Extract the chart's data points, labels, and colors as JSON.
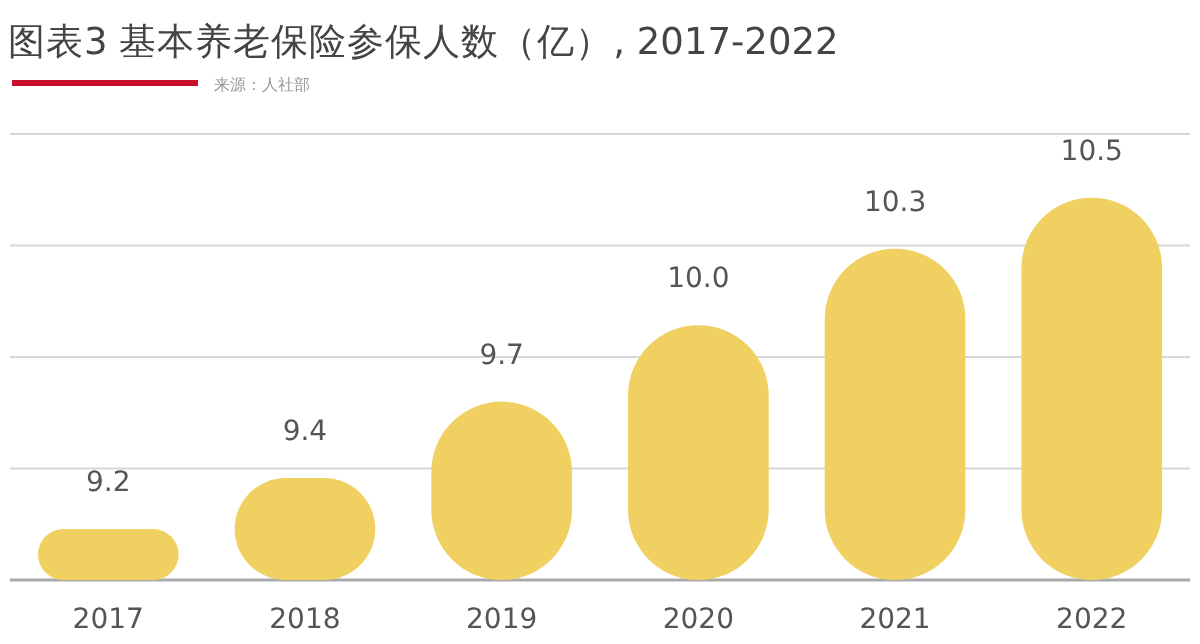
{
  "chart_data": {
    "type": "bar",
    "title": "图表3 基本养老保险参保人数（亿）, 2017-2022",
    "annotations": [
      "来源：人社部"
    ],
    "categories": [
      "2017",
      "2018",
      "2019",
      "2020",
      "2021",
      "2022"
    ],
    "values": [
      9.2,
      9.4,
      9.7,
      10.0,
      10.3,
      10.5
    ],
    "value_labels": [
      "9.2",
      "9.4",
      "9.7",
      "10.0",
      "10.3",
      "10.5"
    ],
    "color": "#f0d060",
    "ylim": [
      9,
      10.75
    ],
    "yticks": [
      {
        "value": 9,
        "label": null
      },
      {
        "value": 9.4375,
        "label": null
      },
      {
        "value": 9.875,
        "label": null
      },
      {
        "value": 10.3125,
        "label": null
      },
      {
        "value": 10.75,
        "label": null
      }
    ],
    "grid": "y",
    "tick_labels": "x"
  }
}
